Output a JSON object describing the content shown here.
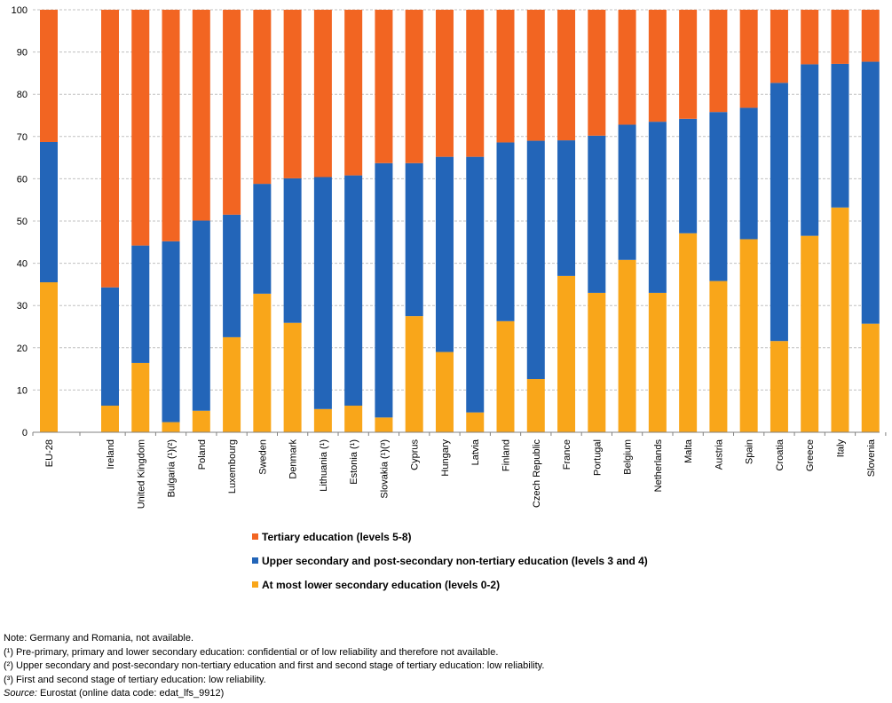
{
  "chart_data": {
    "type": "bar",
    "stacked": true,
    "categories": [
      "EU-28",
      "Ireland",
      "United Kingdom",
      "Bulgaria (¹)(²)",
      "Poland",
      "Luxembourg",
      "Sweden",
      "Denmark",
      "Lithuania (¹)",
      "Estonia (¹)",
      "Slovakia (¹)(³)",
      "Cyprus",
      "Hungary",
      "Latvia",
      "Finland",
      "Czech Republic",
      "France",
      "Portugal",
      "Belgium",
      "Netherlands",
      "Malta",
      "Austria",
      "Spain",
      "Croatia",
      "Greece",
      "Italy",
      "Slovenia"
    ],
    "series": [
      {
        "name": "At most lower secondary education (levels 0-2)",
        "color": "#f9a61a",
        "values": [
          35.5,
          6.3,
          16.4,
          2.4,
          5.1,
          22.5,
          32.8,
          25.9,
          5.5,
          6.3,
          3.5,
          27.5,
          19.0,
          4.7,
          26.3,
          12.6,
          37.0,
          33.0,
          40.8,
          33.0,
          47.1,
          35.8,
          45.7,
          21.6,
          46.5,
          53.2,
          25.7
        ]
      },
      {
        "name": "Upper secondary and post-secondary non-tertiary education (levels 3 and 4)",
        "color": "#2365b8",
        "values": [
          33.2,
          28.0,
          27.8,
          42.8,
          45.0,
          29.0,
          26.0,
          34.2,
          54.9,
          54.5,
          60.2,
          36.2,
          46.2,
          60.5,
          42.3,
          56.4,
          32.1,
          37.2,
          32.0,
          40.5,
          27.1,
          40.0,
          31.1,
          61.1,
          40.6,
          34.0,
          62.0
        ]
      },
      {
        "name": "Tertiary education (levels 5-8)",
        "color": "#f26522",
        "values": [
          31.3,
          65.7,
          55.8,
          54.8,
          49.9,
          48.5,
          41.2,
          39.9,
          39.6,
          39.2,
          36.3,
          36.3,
          34.8,
          34.8,
          31.4,
          31.0,
          30.9,
          29.8,
          27.2,
          26.5,
          25.8,
          24.2,
          23.2,
          17.3,
          12.9,
          12.8,
          12.3
        ]
      }
    ],
    "yticks": [
      "0",
      "10",
      "20",
      "30",
      "40",
      "50",
      "60",
      "70",
      "80",
      "90",
      "100"
    ],
    "ylim": [
      0,
      100
    ],
    "grid": true,
    "legend_placement": "bottom-center"
  },
  "legend": [
    {
      "label": "Tertiary education (levels 5-8)",
      "color": "#f26522"
    },
    {
      "label": "Upper secondary and post-secondary non-tertiary education (levels 3 and 4)",
      "color": "#2365b8"
    },
    {
      "label": "At most lower secondary education (levels 0-2)",
      "color": "#f9a61a"
    }
  ],
  "notes": {
    "note": "Note: Germany and Romania, not available.",
    "fn1": "(¹) Pre-primary, primary and lower secondary education: confidential or of low reliability and therefore not available.",
    "fn2": "(²) Upper secondary and post-secondary non-tertiary education and first and second stage of tertiary education: low reliability.",
    "fn3": "(³) First and second stage of tertiary education: low reliability.",
    "source_label": "Source:",
    "source_text": " Eurostat (online data code: edat_lfs_9912)"
  }
}
